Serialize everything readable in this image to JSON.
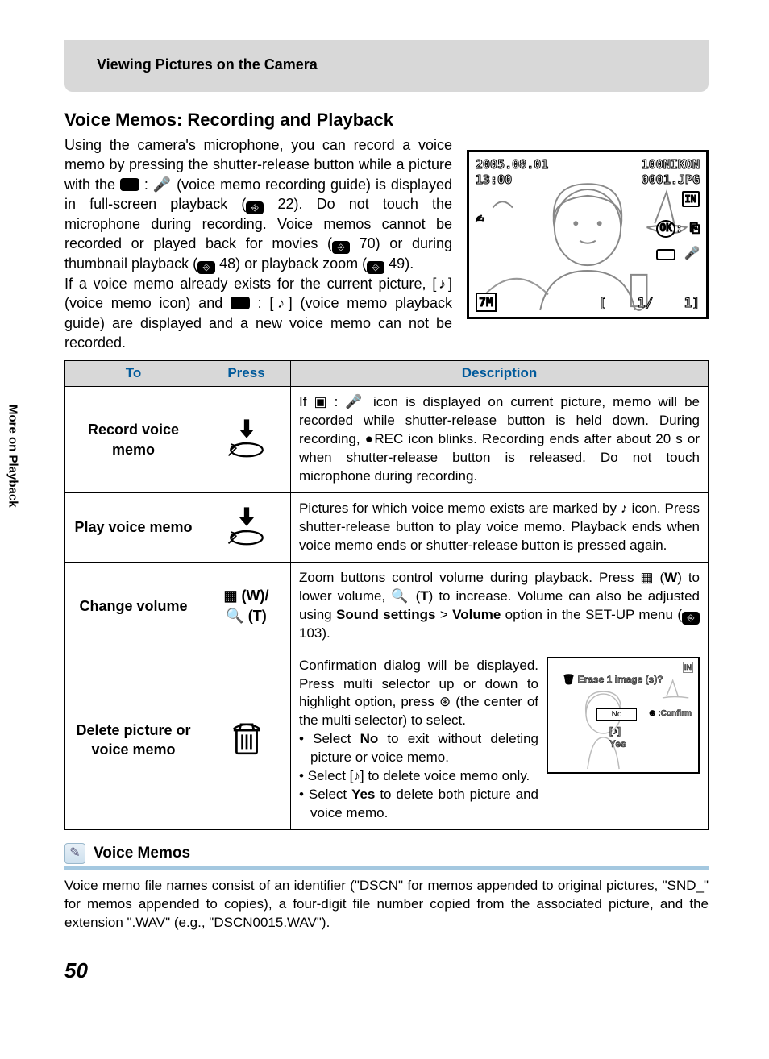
{
  "header": "Viewing Pictures on the Camera",
  "title": "Voice Memos: Recording and Playback",
  "side_tab": "More on Playback",
  "intro": {
    "p1": "Using the camera's microphone, you can record a voice memo by pressing the shutter-release button while a picture with the ",
    "p2": " : 🎤 (voice memo recording guide) is displayed in full-screen playback (",
    "p3": " 22). Do not touch the microphone during recording. Voice memos cannot be recorded or played back for movies (",
    "p4": " 70) or during thumbnail playback (",
    "p5": " 48) or playback zoom (",
    "p6": " 49).",
    "p7": "If a voice memo already exists for the current picture, [♪] (voice memo icon) and ",
    "p8": " : [♪] (voice memo playback guide) are displayed and a new voice memo can not be recorded."
  },
  "lcd": {
    "date": "2005.08.01",
    "time": "13:00",
    "folder": "100NIKON",
    "file": "0001.JPG",
    "size": "7M",
    "frame": "1",
    "ok_label": "OK",
    "rec_guide": ": 🎤"
  },
  "table": {
    "head": {
      "to": "To",
      "press": "Press",
      "desc": "Description"
    },
    "rows": [
      {
        "to": "Record voice memo",
        "press_type": "shutter",
        "desc": "If ▣ : 🎤 icon is displayed on current picture, memo will be recorded while shutter-release button is held down. During recording, ●REC icon blinks. Recording ends after about 20 s or when shutter-release button is released. Do not touch microphone during recording."
      },
      {
        "to": "Play voice memo",
        "press_type": "shutter",
        "desc": "Pictures for which voice memo exists are marked by ♪ icon. Press shutter-release button to play voice memo. Playback ends when voice memo ends or shutter-release button is pressed again."
      },
      {
        "to": "Change volume",
        "press_type": "zoom",
        "press_label_1": "▦ (W)/",
        "press_label_2": "🔍 (T)",
        "desc_pre": "Zoom buttons control volume during playback. Press ▦ (",
        "desc_bold1": "W",
        "desc_mid1": ") to lower volume, 🔍 (",
        "desc_bold2": "T",
        "desc_mid2": ") to increase. Volume can also be adjusted using ",
        "desc_bold3": "Sound settings",
        "desc_mid3": " > ",
        "desc_bold4": "Volume",
        "desc_mid4": " option in the SET-UP menu (",
        "desc_ref": " 103)."
      },
      {
        "to": "Delete picture or voice memo",
        "press_type": "trash",
        "desc_p1": "Confirmation dialog will be displayed. Press multi selector up or down to highlight option, press ⊛ (the center of the multi selector) to select.",
        "bullets": [
          {
            "pre": "Select ",
            "bold": "No",
            "post": " to exit without deleting picture or voice memo."
          },
          {
            "pre": "Select [♪] to delete voice memo only.",
            "bold": "",
            "post": ""
          },
          {
            "pre": "Select ",
            "bold": "Yes",
            "post": " to delete both picture and voice memo."
          }
        ],
        "mini_lcd": {
          "title": "🗑 Erase 1 image (s)?",
          "no": "No",
          "note_icon": "[♪]",
          "yes": "Yes",
          "confirm": "⊛ :Confirm"
        }
      }
    ]
  },
  "note": {
    "title": "Voice Memos",
    "body": "Voice memo file names consist of an identifier (\"DSCN\" for memos appended to original pictures, \"SND_\" for memos appended to copies), a four-digit file number copied from the associated picture, and the extension \".WAV\" (e.g., \"DSCN0015.WAV\")."
  },
  "page_number": "50",
  "colors": {
    "header_bg": "#d8d8d8",
    "th_text": "#005a9b",
    "note_rule": "#a4c8e0"
  }
}
